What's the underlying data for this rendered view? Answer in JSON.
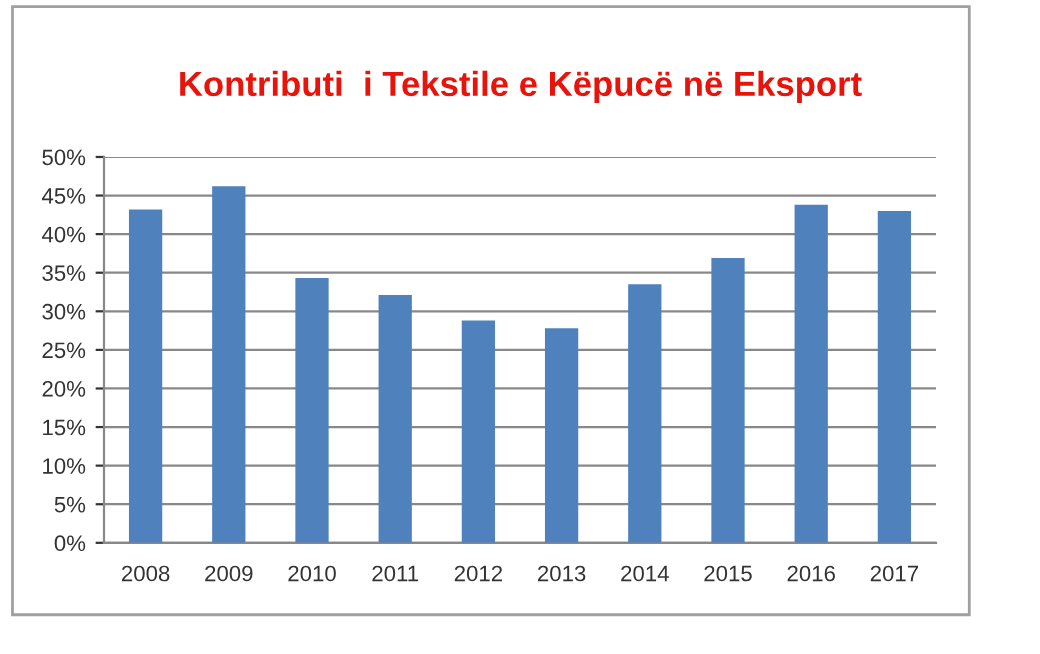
{
  "chart_data": {
    "type": "bar",
    "title": "Kontributi  i Tekstile e Këpucë në Eksport",
    "categories": [
      "2008",
      "2009",
      "2010",
      "2011",
      "2012",
      "2013",
      "2014",
      "2015",
      "2016",
      "2017"
    ],
    "values": [
      43.2,
      46.2,
      34.3,
      32.1,
      28.8,
      27.8,
      33.5,
      36.9,
      43.8,
      43.0
    ],
    "color": "#4f81bd",
    "ylim": [
      0,
      50
    ],
    "yticks": [
      {
        "value": 0,
        "label": "0%"
      },
      {
        "value": 5,
        "label": "5%"
      },
      {
        "value": 10,
        "label": "10%"
      },
      {
        "value": 15,
        "label": "15%"
      },
      {
        "value": 20,
        "label": "20%"
      },
      {
        "value": 25,
        "label": "25%"
      },
      {
        "value": 30,
        "label": "30%"
      },
      {
        "value": 35,
        "label": "35%"
      },
      {
        "value": 40,
        "label": "40%"
      },
      {
        "value": 45,
        "label": "45%"
      },
      {
        "value": 50,
        "label": "50%"
      }
    ],
    "grid": "y",
    "legend": false
  }
}
